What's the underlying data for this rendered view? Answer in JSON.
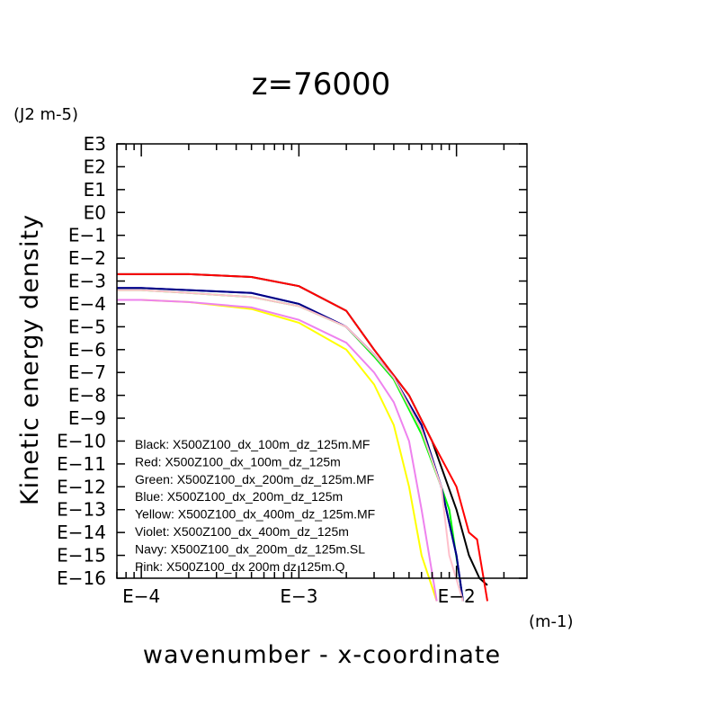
{
  "chart_data": {
    "type": "line",
    "title": "z=76000",
    "ylabel": "Kinetic energy density",
    "yunit": "(J2 m-5)",
    "xlabel": "wavenumber - x-coordinate",
    "xunit": "(m-1)",
    "xscale": "log",
    "yscale": "log",
    "xlim": [
      7e-05,
      0.028
    ],
    "ylim": [
      1e-16,
      1000
    ],
    "ytick_labels": [
      "E3",
      "E2",
      "E1",
      "E0",
      "E−1",
      "E−2",
      "E−3",
      "E−4",
      "E−5",
      "E−6",
      "E−7",
      "E−8",
      "E−9",
      "E−10",
      "E−11",
      "E−12",
      "E−13",
      "E−14",
      "E−15",
      "E−16"
    ],
    "xtick_labels": [
      "E−4",
      "E−3",
      "E−2"
    ],
    "legend_position": "bottom-left inside",
    "series": [
      {
        "name": "Black: X500Z100_dx_100m_dz_125m.MF",
        "color": "#000000",
        "x": [
          7e-05,
          0.0001,
          0.0002,
          0.0005,
          0.001,
          0.002,
          0.003,
          0.005,
          0.007,
          0.01,
          0.012,
          0.014,
          0.0157
        ],
        "y": [
          0.002,
          0.002,
          0.002,
          0.0015,
          0.0006,
          5e-05,
          1e-06,
          1e-08,
          1e-10,
          1e-13,
          1e-15,
          1e-16,
          5e-17
        ]
      },
      {
        "name": "Red: X500Z100_dx_100m_dz_125m",
        "color": "#ff0000",
        "x": [
          7e-05,
          0.0001,
          0.0002,
          0.0005,
          0.001,
          0.002,
          0.003,
          0.005,
          0.007,
          0.01,
          0.012,
          0.0135,
          0.0157
        ],
        "y": [
          0.002,
          0.002,
          0.002,
          0.0015,
          0.0006,
          5e-05,
          1e-06,
          1e-08,
          1e-10,
          1e-12,
          1e-14,
          5e-15,
          1e-17
        ]
      },
      {
        "name": "Green: X500Z100_dx_200m_dz_125m.MF",
        "color": "#00ff00",
        "x": [
          7e-05,
          0.0001,
          0.0002,
          0.0005,
          0.001,
          0.002,
          0.003,
          0.004,
          0.006,
          0.008,
          0.009,
          0.011
        ],
        "y": [
          0.0004,
          0.0004,
          0.0003,
          0.0002,
          8e-05,
          1e-05,
          5e-07,
          5e-08,
          2e-10,
          1e-12,
          1e-13,
          1e-17
        ]
      },
      {
        "name": "Blue: X500Z100_dx_200m_dz_125m",
        "color": "#0000ff",
        "x": [
          7e-05,
          0.0001,
          0.0002,
          0.0005,
          0.001,
          0.002,
          0.003,
          0.004,
          0.006,
          0.008,
          0.01,
          0.011
        ],
        "y": [
          0.0005,
          0.0005,
          0.0004,
          0.0003,
          0.0001,
          1e-05,
          6e-07,
          6e-08,
          5e-10,
          1e-12,
          1e-15,
          1e-17
        ]
      },
      {
        "name": "Yellow: X500Z100_dx_400m_dz_125m.MF",
        "color": "#ffff00",
        "x": [
          7e-05,
          0.0001,
          0.0002,
          0.0005,
          0.001,
          0.002,
          0.003,
          0.004,
          0.005,
          0.006,
          0.0075
        ],
        "y": [
          0.00015,
          0.00015,
          0.00012,
          6e-05,
          1.5e-05,
          1e-06,
          3e-08,
          5e-10,
          1e-12,
          1e-15,
          1e-17
        ]
      },
      {
        "name": "Violet: X500Z100_dx_400m_dz_125m",
        "color": "#ee82ee",
        "x": [
          7e-05,
          0.0001,
          0.0002,
          0.0005,
          0.001,
          0.002,
          0.003,
          0.004,
          0.005,
          0.006,
          0.0075
        ],
        "y": [
          0.00015,
          0.00015,
          0.00012,
          7e-05,
          2e-05,
          2e-06,
          1e-07,
          5e-09,
          1e-10,
          1e-13,
          1e-17
        ]
      },
      {
        "name": "Navy: X500Z100_dx_200m_dz_125m.SL",
        "color": "#000080",
        "x": [
          7e-05,
          0.0001,
          0.0002,
          0.0005,
          0.001,
          0.002,
          0.003,
          0.004,
          0.006,
          0.008,
          0.01,
          0.011
        ],
        "y": [
          0.0005,
          0.0005,
          0.0004,
          0.0003,
          0.0001,
          1e-05,
          6e-07,
          6e-08,
          5e-10,
          1e-12,
          1e-15,
          1e-17
        ]
      },
      {
        "name": "Pink: X500Z100_dx 200m dz 125m.Q",
        "color": "#ffc0cb",
        "x": [
          7e-05,
          0.0001,
          0.0002,
          0.0005,
          0.001,
          0.002,
          0.003,
          0.004,
          0.006,
          0.008,
          0.009,
          0.011
        ],
        "y": [
          0.0004,
          0.0004,
          0.0003,
          0.0002,
          8e-05,
          1e-05,
          6e-07,
          6e-08,
          3e-10,
          1e-12,
          1e-15,
          1e-17
        ]
      }
    ]
  }
}
